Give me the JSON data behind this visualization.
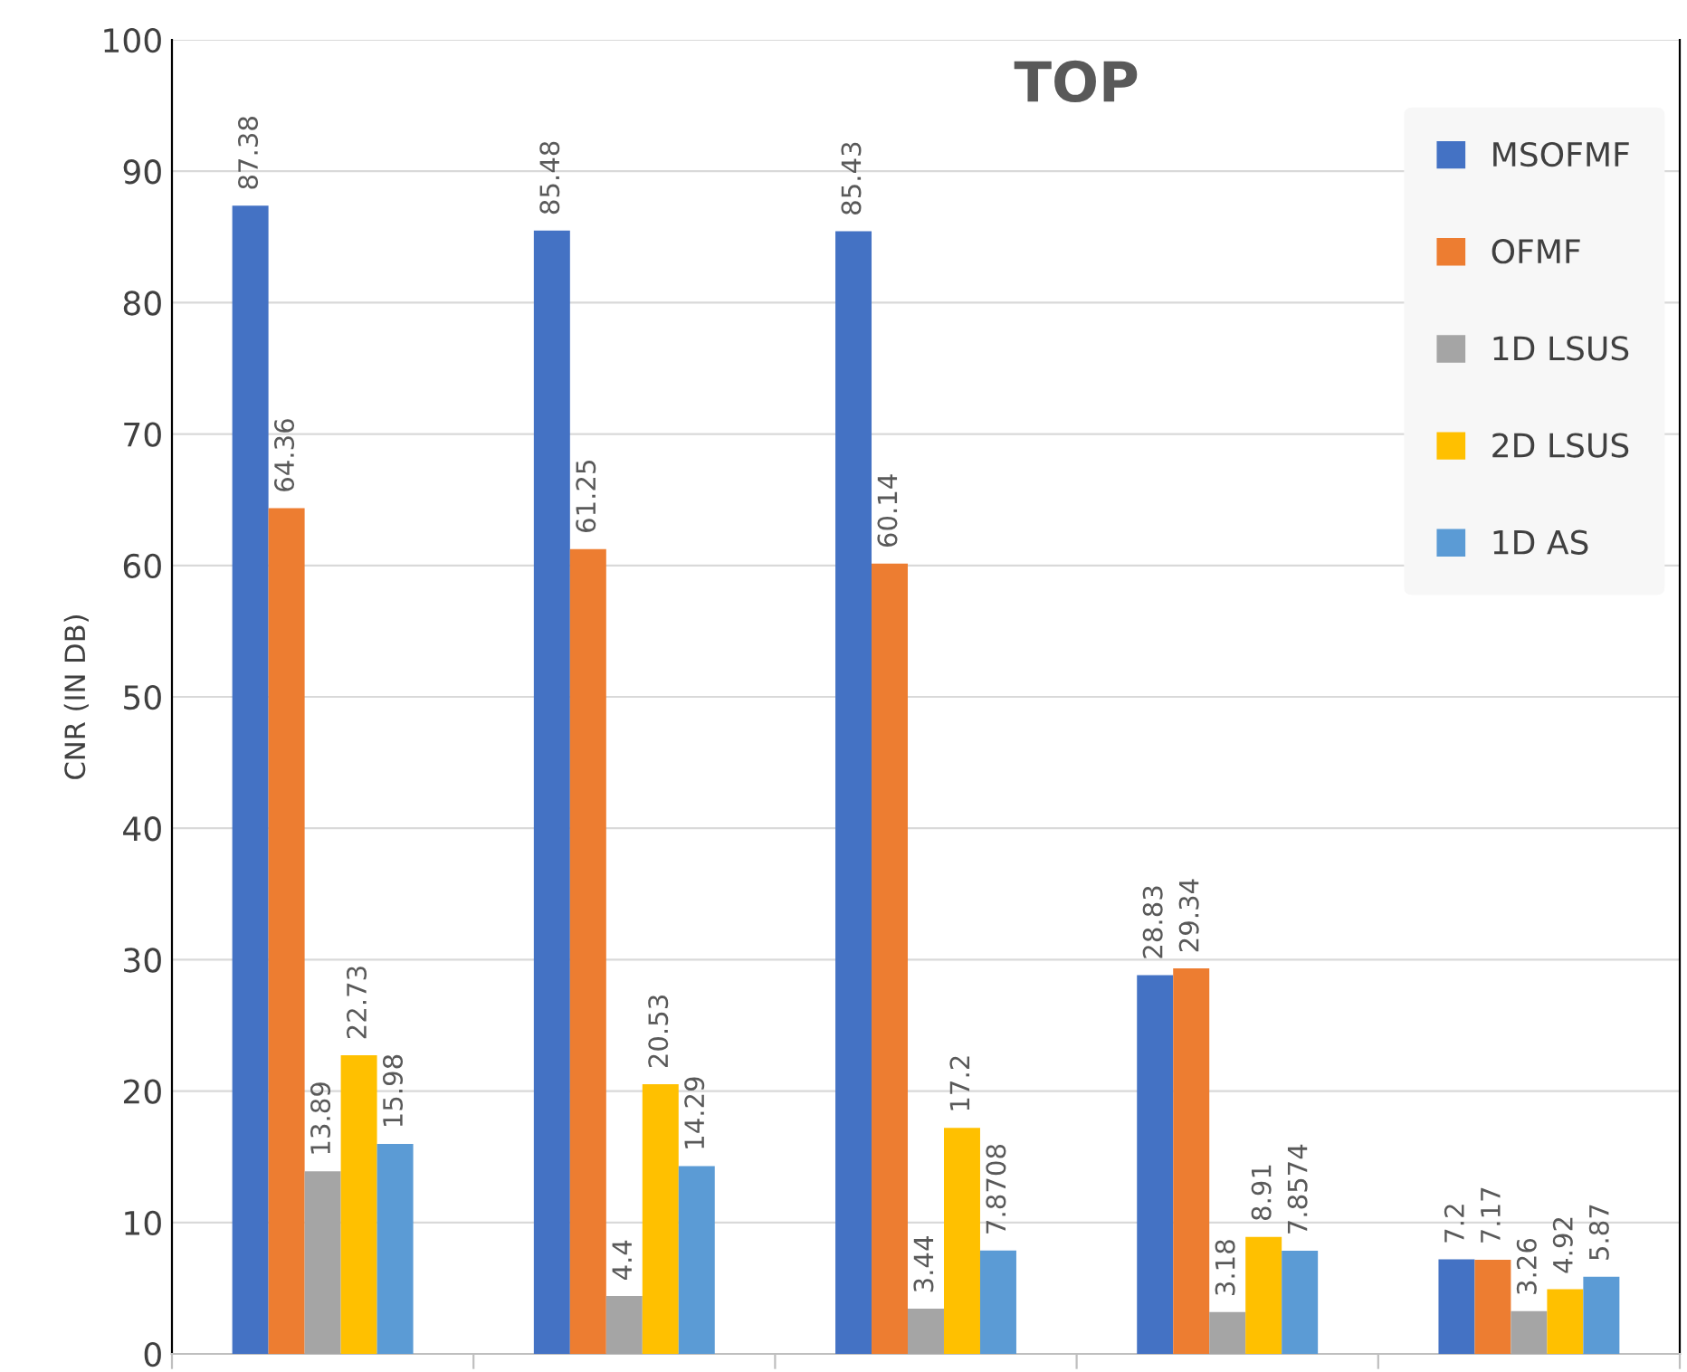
{
  "chart_data": {
    "type": "bar",
    "title": "TOP",
    "ylabel": "CNR (IN DB)",
    "categories": [
      null,
      null,
      null,
      null,
      null
    ],
    "series": [
      {
        "name": "MSOFMF",
        "color": "#4472c4",
        "values": [
          87.38,
          85.48,
          85.43,
          28.83,
          7.2
        ]
      },
      {
        "name": "OFMF",
        "color": "#ed7d31",
        "values": [
          64.36,
          61.25,
          60.14,
          29.34,
          7.17
        ]
      },
      {
        "name": "1D LSUS",
        "color": "#a5a5a5",
        "values": [
          13.89,
          4.4,
          3.44,
          3.18,
          3.26
        ]
      },
      {
        "name": "2D LSUS",
        "color": "#ffc000",
        "values": [
          22.73,
          20.53,
          17.2,
          8.91,
          4.92
        ]
      },
      {
        "name": "1D AS",
        "color": "#5b9bd5",
        "values": [
          15.98,
          14.29,
          7.8708,
          7.8574,
          5.87
        ]
      }
    ],
    "ylim": [
      0,
      100
    ],
    "yticks": [
      0,
      10,
      20,
      30,
      40,
      50,
      60,
      70,
      80,
      90,
      100
    ],
    "grid": "y",
    "legend": "top right",
    "data_labels": true,
    "tick_labels": "y"
  }
}
